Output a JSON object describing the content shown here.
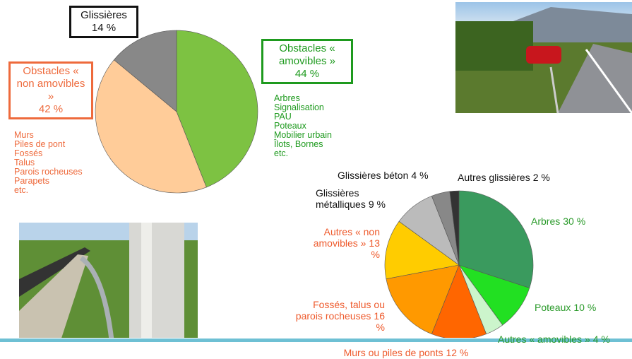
{
  "chart_data": [
    {
      "type": "pie",
      "categories": [
        "Obstacles « amovibles »",
        "Obstacles « non amovibles »",
        "Glissières"
      ],
      "values": [
        44,
        42,
        14
      ],
      "value_labels": [
        "44 %",
        "42 %",
        "14 %"
      ],
      "colors": [
        "#7dc242",
        "#ffcc99",
        "#888888"
      ],
      "label_colors": [
        "#1e9a1e",
        "#ee6a3c",
        "#111111"
      ],
      "annotations": [
        [
          "Arbres",
          "Signalisation",
          "PAU",
          "Poteaux",
          "Mobilier urbain",
          "Îlots, Bornes",
          "etc."
        ],
        [
          "Murs",
          "Piles de pont",
          "Fossés",
          "Talus",
          "Parois rocheuses",
          "Parapets",
          "etc."
        ]
      ]
    },
    {
      "type": "pie",
      "categories": [
        "Arbres",
        "Poteaux",
        "Autres « amovibles »",
        "Murs ou piles de ponts",
        "Fossés, talus ou parois rocheuses",
        "Autres « non amovibles »",
        "Glissières métalliques",
        "Glissières béton",
        "Autres glissières"
      ],
      "values": [
        30,
        10,
        4,
        12,
        16,
        13,
        9,
        4,
        2
      ],
      "value_labels": [
        "30 %",
        "10 %",
        "4 %",
        "12 %",
        "16 %",
        "13 %",
        "9 %",
        "4 %",
        "2 %"
      ],
      "colors": [
        "#3a9a5e",
        "#22e022",
        "#ccf5cc",
        "#ff6600",
        "#ff9900",
        "#ffcc00",
        "#bbbbbb",
        "#888888",
        "#333333"
      ],
      "label_colors": [
        "#2a9a2a",
        "#2a9a2a",
        "#2a9a2a",
        "#ee5a2c",
        "#ee5a2c",
        "#ee5a2c",
        "#111111",
        "#111111",
        "#111111"
      ]
    }
  ]
}
